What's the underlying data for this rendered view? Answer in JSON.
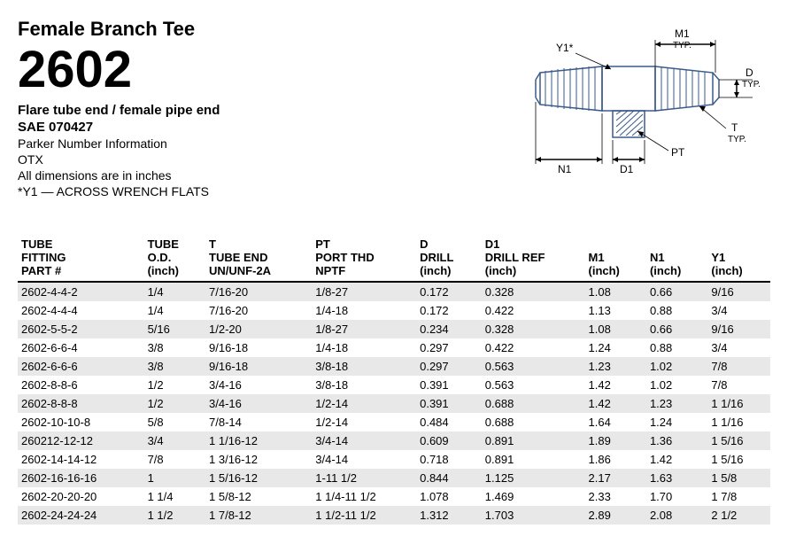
{
  "header": {
    "title": "Female Branch Tee",
    "part_number": "2602",
    "subtitle": "Flare tube end / female pipe end",
    "sae": "SAE 070427",
    "info1": "Parker Number Information",
    "info2": "OTX",
    "info3": "All dimensions are in inches",
    "info4": "*Y1 — ACROSS WRENCH FLATS"
  },
  "diagram": {
    "labels": {
      "y1": "Y1*",
      "m1": "M1",
      "typ1": "TYP.",
      "d": "D",
      "typ2": "TYP.",
      "t": "T",
      "typ3": "TYP.",
      "pt": "PT",
      "n1": "N1",
      "d1": "D1"
    },
    "stroke_color": "#3a5a8a",
    "hatch_color": "#3a5a8a",
    "text_color": "#000000"
  },
  "table": {
    "columns": [
      {
        "h1": "TUBE",
        "h2": "FITTING",
        "h3": "PART #"
      },
      {
        "h1": "TUBE",
        "h2": "O.D.",
        "h3": "(inch)"
      },
      {
        "h1": "T",
        "h2": "TUBE END",
        "h3": "UN/UNF-2A"
      },
      {
        "h1": "PT",
        "h2": "PORT THD",
        "h3": "NPTF"
      },
      {
        "h1": "D",
        "h2": "DRILL",
        "h3": "(inch)"
      },
      {
        "h1": "D1",
        "h2": "DRILL REF",
        "h3": "(inch)"
      },
      {
        "h1": "M1",
        "h2": "(inch)",
        "h3": ""
      },
      {
        "h1": "N1",
        "h2": "(inch)",
        "h3": ""
      },
      {
        "h1": "Y1",
        "h2": "(inch)",
        "h3": ""
      }
    ],
    "rows": [
      [
        "2602-4-4-2",
        "1/4",
        "7/16-20",
        "1/8-27",
        "0.172",
        "0.328",
        "1.08",
        "0.66",
        "9/16"
      ],
      [
        "2602-4-4-4",
        "1/4",
        "7/16-20",
        "1/4-18",
        "0.172",
        "0.422",
        "1.13",
        "0.88",
        "3/4"
      ],
      [
        "2602-5-5-2",
        "5/16",
        "1/2-20",
        "1/8-27",
        "0.234",
        "0.328",
        "1.08",
        "0.66",
        "9/16"
      ],
      [
        "2602-6-6-4",
        "3/8",
        "9/16-18",
        "1/4-18",
        "0.297",
        "0.422",
        "1.24",
        "0.88",
        "3/4"
      ],
      [
        "2602-6-6-6",
        "3/8",
        "9/16-18",
        "3/8-18",
        "0.297",
        "0.563",
        "1.23",
        "1.02",
        "7/8"
      ],
      [
        "2602-8-8-6",
        "1/2",
        "3/4-16",
        "3/8-18",
        "0.391",
        "0.563",
        "1.42",
        "1.02",
        "7/8"
      ],
      [
        "2602-8-8-8",
        "1/2",
        "3/4-16",
        "1/2-14",
        "0.391",
        "0.688",
        "1.42",
        "1.23",
        "1 1/16"
      ],
      [
        "2602-10-10-8",
        "5/8",
        "7/8-14",
        "1/2-14",
        "0.484",
        "0.688",
        "1.64",
        "1.24",
        "1 1/16"
      ],
      [
        "260212-12-12",
        "3/4",
        "1 1/16-12",
        "3/4-14",
        "0.609",
        "0.891",
        "1.89",
        "1.36",
        "1 5/16"
      ],
      [
        "2602-14-14-12",
        "7/8",
        "1 3/16-12",
        "3/4-14",
        "0.718",
        "0.891",
        "1.86",
        "1.42",
        "1 5/16"
      ],
      [
        "2602-16-16-16",
        "1",
        "1 5/16-12",
        "1-11 1/2",
        "0.844",
        "1.125",
        "2.17",
        "1.63",
        "1 5/8"
      ],
      [
        "2602-20-20-20",
        "1 1/4",
        "1 5/8-12",
        "1 1/4-11 1/2",
        "1.078",
        "1.469",
        "2.33",
        "1.70",
        "1 7/8"
      ],
      [
        "2602-24-24-24",
        "1 1/2",
        "1 7/8-12",
        "1 1/2-11 1/2",
        "1.312",
        "1.703",
        "2.89",
        "2.08",
        "2 1/2"
      ]
    ],
    "stripe_color": "#e8e8e8"
  }
}
